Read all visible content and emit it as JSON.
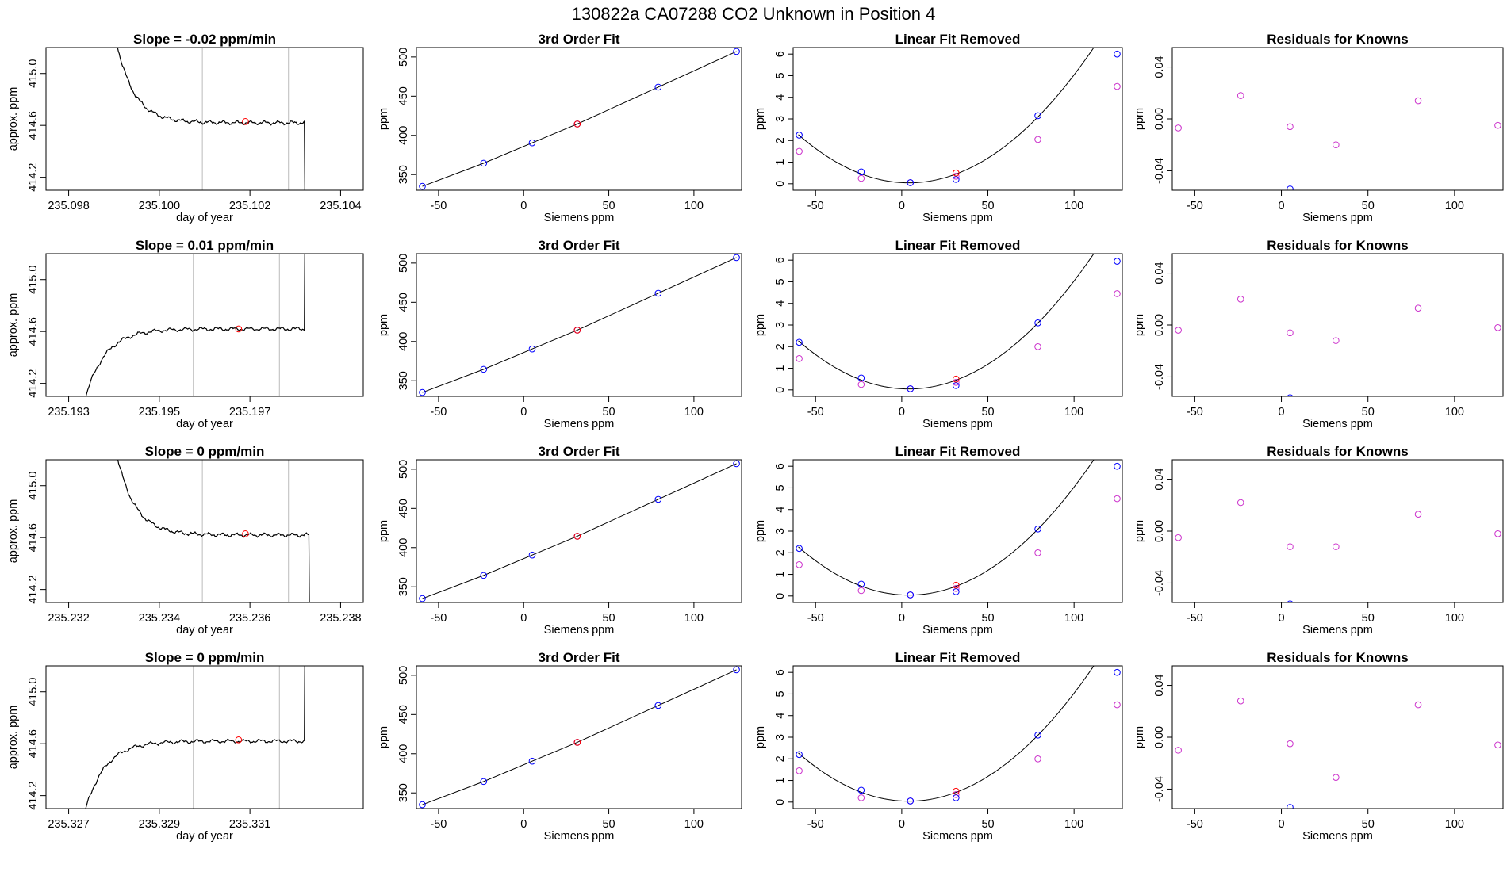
{
  "main_title": "130822a      CA07288    CO2 Unknown in Position  4",
  "colors": {
    "known": "#0000ff",
    "unknown": "#ff0000",
    "linear_removed": "#cc33cc",
    "residual": "#cc33cc",
    "window_line": "#bbbbbb",
    "trace": "#000000"
  },
  "chart_data": [
    {
      "type": "line",
      "panel": "row1-trace",
      "title": "Slope =  -0.02  ppm/min",
      "xlabel": "day of year",
      "ylabel": "approx. ppm",
      "xlim": [
        235.0975,
        235.1045
      ],
      "ylim": [
        414.1,
        415.2
      ],
      "xticks": [
        "235.098",
        "235.100",
        "235.102",
        "235.104"
      ],
      "yticks": [
        "414.2",
        "414.6",
        "415.0"
      ],
      "window_lines": [
        235.10095,
        235.10285
      ],
      "marker": {
        "x": 235.1019,
        "y": 414.63
      },
      "trace": {
        "x_start": 235.0989,
        "x_end": 235.1032,
        "shape": "decay",
        "start": 415.55,
        "end": 414.62,
        "drop": 414.0
      }
    },
    {
      "type": "scatter",
      "panel": "row1-fit",
      "title": "3rd Order Fit",
      "xlabel": "Siemens ppm",
      "ylabel": "ppm",
      "xlim": [
        -63,
        128
      ],
      "ylim": [
        330,
        512
      ],
      "xticks": [
        -50,
        0,
        50,
        100
      ],
      "yticks": [
        350,
        400,
        450,
        500
      ],
      "knowns": [
        [
          -59.5,
          335
        ],
        [
          -23.5,
          364.5
        ],
        [
          5,
          390.5
        ],
        [
          31.5,
          414.5
        ],
        [
          79,
          461.5
        ],
        [
          125,
          507
        ]
      ],
      "unknown": [
        31.5,
        414.5
      ]
    },
    {
      "type": "scatter",
      "panel": "row1-linear",
      "title": "Linear Fit Removed",
      "xlabel": "Siemens ppm",
      "ylabel": "ppm",
      "xlim": [
        -63,
        128
      ],
      "ylim": [
        -0.3,
        6.3
      ],
      "xticks": [
        -50,
        0,
        50,
        100
      ],
      "yticks": [
        0,
        1,
        2,
        3,
        4,
        5,
        6
      ],
      "knowns": [
        [
          -59.5,
          2.25
        ],
        [
          -23.5,
          0.55
        ],
        [
          5,
          0.05
        ],
        [
          31.5,
          0.2
        ],
        [
          79,
          3.15
        ],
        [
          125,
          6.0
        ]
      ],
      "removed": [
        [
          -59.5,
          1.5
        ],
        [
          -23.5,
          0.25
        ],
        [
          5,
          0.05
        ],
        [
          31.5,
          0.35
        ],
        [
          79,
          2.05
        ],
        [
          125,
          4.5
        ]
      ],
      "unknown": [
        31.5,
        0.5
      ],
      "curve": {
        "a": 0.000543,
        "b": -0.00445,
        "c": 0.0512
      }
    },
    {
      "type": "scatter",
      "panel": "row1-resid",
      "title": "Residuals for Knowns",
      "xlabel": "Siemens ppm",
      "ylabel": "ppm",
      "xlim": [
        -63,
        128
      ],
      "ylim": [
        -0.055,
        0.055
      ],
      "xticks": [
        -50,
        0,
        50,
        100
      ],
      "yticks": [
        "-0.04",
        "0.00",
        "0.04"
      ],
      "points": [
        [
          -59.5,
          -0.007
        ],
        [
          -23.5,
          0.018
        ],
        [
          5,
          -0.006
        ],
        [
          31.5,
          -0.02
        ],
        [
          79,
          0.014
        ],
        [
          125,
          -0.005
        ]
      ],
      "points_blue": [
        [
          5,
          -0.054
        ]
      ]
    },
    {
      "type": "line",
      "panel": "row2-trace",
      "title": "Slope =  0.01  ppm/min",
      "xlabel": "day of year",
      "ylabel": "approx. ppm",
      "xlim": [
        235.1925,
        235.1995
      ],
      "ylim": [
        414.1,
        415.2
      ],
      "xticks": [
        "235.193",
        "235.195",
        "235.197"
      ],
      "yticks": [
        "414.2",
        "414.6",
        "415.0"
      ],
      "window_lines": [
        235.19575,
        235.19765
      ],
      "marker": {
        "x": 235.19675,
        "y": 414.62
      },
      "trace": {
        "x_start": 235.1933,
        "x_end": 235.1982,
        "shape": "rise",
        "start": 414.0,
        "end": 414.62,
        "jump": 415.55
      }
    },
    {
      "type": "scatter",
      "panel": "row2-fit",
      "title": "3rd Order Fit",
      "xlabel": "Siemens ppm",
      "ylabel": "ppm",
      "xlim": [
        -63,
        128
      ],
      "ylim": [
        330,
        512
      ],
      "xticks": [
        -50,
        0,
        50,
        100
      ],
      "yticks": [
        350,
        400,
        450,
        500
      ],
      "knowns": [
        [
          -59.5,
          335
        ],
        [
          -23.5,
          364.5
        ],
        [
          5,
          390.5
        ],
        [
          31.5,
          414.5
        ],
        [
          79,
          461.5
        ],
        [
          125,
          507
        ]
      ],
      "unknown": [
        31.5,
        414.5
      ]
    },
    {
      "type": "scatter",
      "panel": "row2-linear",
      "title": "Linear Fit Removed",
      "xlabel": "Siemens ppm",
      "ylabel": "ppm",
      "xlim": [
        -63,
        128
      ],
      "ylim": [
        -0.3,
        6.3
      ],
      "xticks": [
        -50,
        0,
        50,
        100
      ],
      "yticks": [
        0,
        1,
        2,
        3,
        4,
        5,
        6
      ],
      "knowns": [
        [
          -59.5,
          2.2
        ],
        [
          -23.5,
          0.55
        ],
        [
          5,
          0.05
        ],
        [
          31.5,
          0.2
        ],
        [
          79,
          3.1
        ],
        [
          125,
          5.95
        ]
      ],
      "removed": [
        [
          -59.5,
          1.45
        ],
        [
          -23.5,
          0.25
        ],
        [
          5,
          0.05
        ],
        [
          31.5,
          0.35
        ],
        [
          79,
          2.0
        ],
        [
          125,
          4.45
        ]
      ],
      "unknown": [
        31.5,
        0.5
      ],
      "curve": {
        "a": 0.000543,
        "b": -0.00445,
        "c": 0.0512
      }
    },
    {
      "type": "scatter",
      "panel": "row2-resid",
      "title": "Residuals for Knowns",
      "xlabel": "Siemens ppm",
      "ylabel": "ppm",
      "xlim": [
        -63,
        128
      ],
      "ylim": [
        -0.055,
        0.055
      ],
      "xticks": [
        -50,
        0,
        50,
        100
      ],
      "yticks": [
        "-0.04",
        "0.00",
        "0.04"
      ],
      "points": [
        [
          -59.5,
          -0.004
        ],
        [
          -23.5,
          0.02
        ],
        [
          5,
          -0.006
        ],
        [
          31.5,
          -0.012
        ],
        [
          79,
          0.013
        ],
        [
          125,
          -0.002
        ]
      ],
      "points_blue": [
        [
          5,
          -0.056
        ]
      ]
    },
    {
      "type": "line",
      "panel": "row3-trace",
      "title": "Slope =  0  ppm/min",
      "xlabel": "day of year",
      "ylabel": "approx. ppm",
      "xlim": [
        235.2315,
        235.2385
      ],
      "ylim": [
        414.1,
        415.2
      ],
      "xticks": [
        "235.232",
        "235.234",
        "235.236",
        "235.238"
      ],
      "yticks": [
        "414.2",
        "414.6",
        "415.0"
      ],
      "window_lines": [
        235.23495,
        235.23685
      ],
      "marker": {
        "x": 235.2359,
        "y": 414.63
      },
      "trace": {
        "x_start": 235.2329,
        "x_end": 235.2373,
        "shape": "decay",
        "start": 415.55,
        "end": 414.62,
        "drop": 414.0
      }
    },
    {
      "type": "scatter",
      "panel": "row3-fit",
      "title": "3rd Order Fit",
      "xlabel": "Siemens ppm",
      "ylabel": "ppm",
      "xlim": [
        -63,
        128
      ],
      "ylim": [
        330,
        512
      ],
      "xticks": [
        -50,
        0,
        50,
        100
      ],
      "yticks": [
        350,
        400,
        450,
        500
      ],
      "knowns": [
        [
          -59.5,
          335
        ],
        [
          -23.5,
          364.5
        ],
        [
          5,
          390.5
        ],
        [
          31.5,
          414.5
        ],
        [
          79,
          461.5
        ],
        [
          125,
          507
        ]
      ],
      "unknown": [
        31.5,
        414.5
      ]
    },
    {
      "type": "scatter",
      "panel": "row3-linear",
      "title": "Linear Fit Removed",
      "xlabel": "Siemens ppm",
      "ylabel": "ppm",
      "xlim": [
        -63,
        128
      ],
      "ylim": [
        -0.3,
        6.3
      ],
      "xticks": [
        -50,
        0,
        50,
        100
      ],
      "yticks": [
        0,
        1,
        2,
        3,
        4,
        5,
        6
      ],
      "knowns": [
        [
          -59.5,
          2.2
        ],
        [
          -23.5,
          0.55
        ],
        [
          5,
          0.05
        ],
        [
          31.5,
          0.2
        ],
        [
          79,
          3.1
        ],
        [
          125,
          6.0
        ]
      ],
      "removed": [
        [
          -59.5,
          1.45
        ],
        [
          -23.5,
          0.25
        ],
        [
          5,
          0.05
        ],
        [
          31.5,
          0.35
        ],
        [
          79,
          2.0
        ],
        [
          125,
          4.5
        ]
      ],
      "unknown": [
        31.5,
        0.5
      ],
      "curve": {
        "a": 0.000543,
        "b": -0.00445,
        "c": 0.0512
      }
    },
    {
      "type": "scatter",
      "panel": "row3-resid",
      "title": "Residuals for Knowns",
      "xlabel": "Siemens ppm",
      "ylabel": "ppm",
      "xlim": [
        -63,
        128
      ],
      "ylim": [
        -0.055,
        0.055
      ],
      "xticks": [
        -50,
        0,
        50,
        100
      ],
      "yticks": [
        "-0.04",
        "0.00",
        "0.04"
      ],
      "points": [
        [
          -59.5,
          -0.005
        ],
        [
          -23.5,
          0.022
        ],
        [
          5,
          -0.012
        ],
        [
          31.5,
          -0.012
        ],
        [
          79,
          0.013
        ],
        [
          125,
          -0.002
        ]
      ],
      "points_blue": [
        [
          5,
          -0.056
        ]
      ]
    },
    {
      "type": "line",
      "panel": "row4-trace",
      "title": "Slope =  0  ppm/min",
      "xlabel": "day of year",
      "ylabel": "approx. ppm",
      "xlim": [
        235.3265,
        235.3335
      ],
      "ylim": [
        414.1,
        415.2
      ],
      "xticks": [
        "235.327",
        "235.329",
        "235.331"
      ],
      "yticks": [
        "414.2",
        "414.6",
        "415.0"
      ],
      "window_lines": [
        235.32975,
        235.33165
      ],
      "marker": {
        "x": 235.33075,
        "y": 414.63
      },
      "trace": {
        "x_start": 235.3273,
        "x_end": 235.3322,
        "shape": "rise",
        "start": 414.0,
        "end": 414.62,
        "jump": 415.55
      }
    },
    {
      "type": "scatter",
      "panel": "row4-fit",
      "title": "3rd Order Fit",
      "xlabel": "Siemens ppm",
      "ylabel": "ppm",
      "xlim": [
        -63,
        128
      ],
      "ylim": [
        330,
        512
      ],
      "xticks": [
        -50,
        0,
        50,
        100
      ],
      "yticks": [
        350,
        400,
        450,
        500
      ],
      "knowns": [
        [
          -59.5,
          335
        ],
        [
          -23.5,
          364.5
        ],
        [
          5,
          390.5
        ],
        [
          31.5,
          414.5
        ],
        [
          79,
          461.5
        ],
        [
          125,
          507
        ]
      ],
      "unknown": [
        31.5,
        414.5
      ]
    },
    {
      "type": "scatter",
      "panel": "row4-linear",
      "title": "Linear Fit Removed",
      "xlabel": "Siemens ppm",
      "ylabel": "ppm",
      "xlim": [
        -63,
        128
      ],
      "ylim": [
        -0.3,
        6.3
      ],
      "xticks": [
        -50,
        0,
        50,
        100
      ],
      "yticks": [
        0,
        1,
        2,
        3,
        4,
        5,
        6
      ],
      "knowns": [
        [
          -59.5,
          2.2
        ],
        [
          -23.5,
          0.55
        ],
        [
          5,
          0.05
        ],
        [
          31.5,
          0.2
        ],
        [
          79,
          3.1
        ],
        [
          125,
          6.0
        ]
      ],
      "removed": [
        [
          -59.5,
          1.45
        ],
        [
          -23.5,
          0.2
        ],
        [
          5,
          0.05
        ],
        [
          31.5,
          0.35
        ],
        [
          79,
          2.0
        ],
        [
          125,
          4.5
        ]
      ],
      "unknown": [
        31.5,
        0.5
      ],
      "curve": {
        "a": 0.000543,
        "b": -0.00445,
        "c": 0.0512
      }
    },
    {
      "type": "scatter",
      "panel": "row4-resid",
      "title": "Residuals for Knowns",
      "xlabel": "Siemens ppm",
      "ylabel": "ppm",
      "xlim": [
        -63,
        128
      ],
      "ylim": [
        -0.055,
        0.055
      ],
      "xticks": [
        -50,
        0,
        50,
        100
      ],
      "yticks": [
        "-0.04",
        "0.00",
        "0.04"
      ],
      "points": [
        [
          -59.5,
          -0.01
        ],
        [
          -23.5,
          0.028
        ],
        [
          5,
          -0.005
        ],
        [
          31.5,
          -0.031
        ],
        [
          79,
          0.025
        ],
        [
          125,
          -0.006
        ]
      ],
      "points_blue": [
        [
          5,
          -0.054
        ]
      ]
    }
  ]
}
